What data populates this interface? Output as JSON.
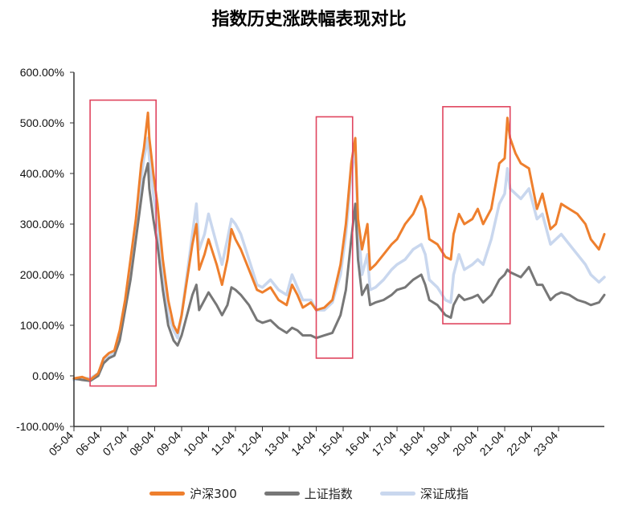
{
  "chart_data": {
    "type": "line",
    "title": "指数历史涨跌幅表现对比",
    "xlabel": "",
    "ylabel": "",
    "ylim": [
      -100,
      600
    ],
    "yticks": [
      "600.00%",
      "500.00%",
      "400.00%",
      "300.00%",
      "200.00%",
      "100.00%",
      "0.00%",
      "-100.00%"
    ],
    "ytick_values": [
      600,
      500,
      400,
      300,
      200,
      100,
      0,
      -100
    ],
    "x_range": [
      2005.0,
      2024.7
    ],
    "categories": [
      "05-04",
      "06-04",
      "07-04",
      "08-04",
      "09-04",
      "10-04",
      "11-04",
      "12-04",
      "13-04",
      "14-04",
      "15-04",
      "16-04",
      "17-04",
      "18-04",
      "19-04",
      "20-04",
      "21-04",
      "22-04",
      "23-04"
    ],
    "tick_years": [
      2005,
      2006,
      2007,
      2008,
      2009,
      2010,
      2011,
      2012,
      2013,
      2014,
      2015,
      2016,
      2017,
      2018,
      2019,
      2020,
      2021,
      2022,
      2023
    ],
    "grid": false,
    "legend_position": "bottom",
    "series": [
      {
        "name": "沪深300",
        "color": "#ee7f2d",
        "x": [
          2005.0,
          2005.3,
          2005.6,
          2005.9,
          2006.1,
          2006.3,
          2006.5,
          2006.7,
          2006.9,
          2007.1,
          2007.3,
          2007.5,
          2007.6,
          2007.75,
          2007.8,
          2007.95,
          2008.1,
          2008.3,
          2008.5,
          2008.7,
          2008.85,
          2009.0,
          2009.2,
          2009.4,
          2009.55,
          2009.65,
          2009.85,
          2010.0,
          2010.3,
          2010.5,
          2010.7,
          2010.85,
          2011.0,
          2011.2,
          2011.5,
          2011.8,
          2012.0,
          2012.3,
          2012.6,
          2012.9,
          2013.1,
          2013.3,
          2013.5,
          2013.8,
          2014.0,
          2014.3,
          2014.6,
          2014.9,
          2015.1,
          2015.3,
          2015.45,
          2015.55,
          2015.7,
          2015.9,
          2016.0,
          2016.2,
          2016.5,
          2016.8,
          2017.0,
          2017.3,
          2017.6,
          2017.9,
          2018.05,
          2018.2,
          2018.5,
          2018.8,
          2019.0,
          2019.1,
          2019.3,
          2019.5,
          2019.8,
          2020.0,
          2020.2,
          2020.5,
          2020.8,
          2021.0,
          2021.1,
          2021.2,
          2021.4,
          2021.6,
          2021.9,
          2022.2,
          2022.4,
          2022.7,
          2022.9,
          2023.1,
          2023.4,
          2023.7,
          2024.0,
          2024.2,
          2024.5,
          2024.7
        ],
        "values": [
          -5,
          -2,
          -8,
          5,
          35,
          45,
          50,
          90,
          150,
          230,
          310,
          420,
          450,
          520,
          470,
          400,
          340,
          230,
          150,
          100,
          85,
          120,
          190,
          260,
          300,
          210,
          240,
          270,
          220,
          180,
          230,
          290,
          270,
          250,
          210,
          170,
          165,
          175,
          150,
          140,
          180,
          160,
          135,
          145,
          130,
          135,
          150,
          220,
          300,
          420,
          470,
          310,
          250,
          300,
          210,
          220,
          240,
          260,
          270,
          300,
          320,
          355,
          330,
          270,
          260,
          235,
          230,
          280,
          320,
          300,
          310,
          330,
          300,
          330,
          420,
          430,
          510,
          470,
          440,
          420,
          410,
          330,
          360,
          290,
          300,
          340,
          330,
          320,
          300,
          270,
          250,
          280
        ]
      },
      {
        "name": "上证指数",
        "color": "#777777",
        "x": [
          2005.0,
          2005.3,
          2005.6,
          2005.9,
          2006.1,
          2006.3,
          2006.5,
          2006.7,
          2006.9,
          2007.1,
          2007.3,
          2007.5,
          2007.6,
          2007.75,
          2007.8,
          2007.95,
          2008.1,
          2008.3,
          2008.5,
          2008.7,
          2008.85,
          2009.0,
          2009.2,
          2009.4,
          2009.55,
          2009.65,
          2009.85,
          2010.0,
          2010.3,
          2010.5,
          2010.7,
          2010.85,
          2011.0,
          2011.2,
          2011.5,
          2011.8,
          2012.0,
          2012.3,
          2012.6,
          2012.9,
          2013.1,
          2013.3,
          2013.5,
          2013.8,
          2014.0,
          2014.3,
          2014.6,
          2014.9,
          2015.1,
          2015.3,
          2015.45,
          2015.55,
          2015.7,
          2015.9,
          2016.0,
          2016.2,
          2016.5,
          2016.8,
          2017.0,
          2017.3,
          2017.6,
          2017.9,
          2018.05,
          2018.2,
          2018.5,
          2018.8,
          2019.0,
          2019.1,
          2019.3,
          2019.5,
          2019.8,
          2020.0,
          2020.2,
          2020.5,
          2020.8,
          2021.0,
          2021.1,
          2021.2,
          2021.4,
          2021.6,
          2021.9,
          2022.2,
          2022.4,
          2022.7,
          2022.9,
          2023.1,
          2023.4,
          2023.7,
          2024.0,
          2024.2,
          2024.5,
          2024.7
        ],
        "values": [
          -5,
          -8,
          -10,
          0,
          25,
          35,
          40,
          70,
          130,
          190,
          270,
          350,
          390,
          420,
          370,
          310,
          260,
          170,
          100,
          70,
          60,
          80,
          120,
          160,
          180,
          130,
          150,
          165,
          140,
          120,
          140,
          175,
          170,
          160,
          140,
          110,
          105,
          110,
          95,
          85,
          95,
          90,
          80,
          80,
          75,
          80,
          85,
          120,
          170,
          270,
          340,
          230,
          160,
          180,
          140,
          145,
          150,
          160,
          170,
          175,
          190,
          200,
          180,
          150,
          140,
          120,
          115,
          140,
          160,
          150,
          155,
          160,
          145,
          160,
          190,
          200,
          210,
          205,
          200,
          195,
          215,
          180,
          180,
          150,
          160,
          165,
          160,
          150,
          145,
          140,
          145,
          160
        ]
      },
      {
        "name": "深证成指",
        "color": "#c9d7ee",
        "x": [
          2005.0,
          2005.3,
          2005.6,
          2005.9,
          2006.1,
          2006.3,
          2006.5,
          2006.7,
          2006.9,
          2007.1,
          2007.3,
          2007.5,
          2007.6,
          2007.75,
          2007.8,
          2007.95,
          2008.1,
          2008.3,
          2008.5,
          2008.7,
          2008.85,
          2009.0,
          2009.2,
          2009.4,
          2009.55,
          2009.65,
          2009.85,
          2010.0,
          2010.3,
          2010.5,
          2010.7,
          2010.85,
          2011.0,
          2011.2,
          2011.5,
          2011.8,
          2012.0,
          2012.3,
          2012.6,
          2012.9,
          2013.1,
          2013.3,
          2013.5,
          2013.8,
          2014.0,
          2014.3,
          2014.6,
          2014.9,
          2015.1,
          2015.3,
          2015.45,
          2015.55,
          2015.7,
          2015.9,
          2016.0,
          2016.2,
          2016.5,
          2016.8,
          2017.0,
          2017.3,
          2017.6,
          2017.9,
          2018.05,
          2018.2,
          2018.5,
          2018.8,
          2019.0,
          2019.1,
          2019.3,
          2019.5,
          2019.8,
          2020.0,
          2020.2,
          2020.5,
          2020.8,
          2021.0,
          2021.1,
          2021.2,
          2021.4,
          2021.6,
          2021.9,
          2022.2,
          2022.4,
          2022.7,
          2022.9,
          2023.1,
          2023.4,
          2023.7,
          2024.0,
          2024.2,
          2024.5,
          2024.7
        ],
        "values": [
          -8,
          -5,
          -5,
          5,
          30,
          38,
          45,
          80,
          140,
          210,
          290,
          390,
          430,
          470,
          430,
          360,
          300,
          200,
          120,
          90,
          75,
          120,
          200,
          280,
          340,
          250,
          280,
          320,
          260,
          220,
          270,
          310,
          300,
          280,
          230,
          180,
          175,
          190,
          170,
          160,
          200,
          175,
          150,
          150,
          130,
          130,
          145,
          200,
          280,
          400,
          450,
          300,
          200,
          240,
          170,
          175,
          190,
          210,
          220,
          230,
          250,
          260,
          240,
          190,
          175,
          150,
          145,
          200,
          240,
          210,
          220,
          230,
          220,
          270,
          340,
          360,
          410,
          370,
          360,
          350,
          370,
          310,
          320,
          260,
          270,
          280,
          260,
          240,
          220,
          200,
          185,
          195
        ]
      }
    ],
    "annotations": [
      {
        "shape": "rect",
        "x0": 2005.6,
        "x1": 2008.05,
        "y0": -20,
        "y1": 545
      },
      {
        "shape": "rect",
        "x0": 2014.0,
        "x1": 2015.35,
        "y0": 35,
        "y1": 512
      },
      {
        "shape": "rect",
        "x0": 2018.7,
        "x1": 2021.2,
        "y0": 103,
        "y1": 532
      }
    ]
  }
}
